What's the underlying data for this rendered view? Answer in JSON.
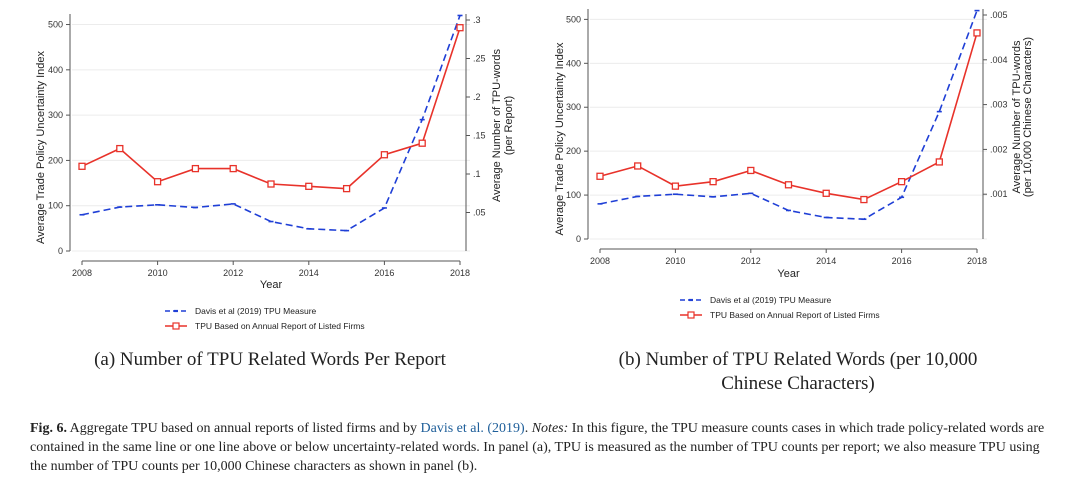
{
  "panels": [
    {
      "caption": "(a) Number of TPU Related Words Per Report",
      "chart_data": {
        "type": "line",
        "x": [
          2008,
          2009,
          2010,
          2011,
          2012,
          2013,
          2014,
          2015,
          2016,
          2017,
          2018
        ],
        "xlabel": "Year",
        "xticks": [
          "2008",
          "2010",
          "2012",
          "2014",
          "2016",
          "2018"
        ],
        "ylabel_left": "Average Trade Policy Uncertainty Index",
        "yticks_left": [
          "0",
          "100",
          "200",
          "300",
          "400",
          "500"
        ],
        "ylim_left": [
          0,
          510
        ],
        "ylabel_right": [
          "Average Number of TPU-words",
          "(per Report)"
        ],
        "yticks_right": [
          ".05",
          ".1",
          ".15",
          ".2",
          ".25",
          ".3"
        ],
        "ylim_right": [
          0.0,
          0.3
        ],
        "series": [
          {
            "name": "Davis et al (2019) TPU Measure",
            "axis": "left",
            "style": "dashed",
            "color": "#1f3fd6",
            "values": [
              80,
              97,
              102,
              96,
              104,
              65,
              49,
              45,
              95,
              290,
              520
            ]
          },
          {
            "name": "TPU Based on Annual Report of Listed Firms",
            "axis": "right",
            "style": "solid",
            "color": "#e8322a",
            "values": [
              0.11,
              0.133,
              0.09,
              0.107,
              0.107,
              0.087,
              0.084,
              0.081,
              0.125,
              0.14,
              0.29
            ]
          }
        ],
        "legend_position": "bottom"
      }
    },
    {
      "caption": "(b) Number of TPU Related Words (per 10,000 Chinese Characters)",
      "chart_data": {
        "type": "line",
        "x": [
          2008,
          2009,
          2010,
          2011,
          2012,
          2013,
          2014,
          2015,
          2016,
          2017,
          2018
        ],
        "xlabel": "Year",
        "xticks": [
          "2008",
          "2010",
          "2012",
          "2014",
          "2016",
          "2018"
        ],
        "ylabel_left": "Average Trade Policy Uncertainty Index",
        "yticks_left": [
          "0",
          "100",
          "200",
          "300",
          "400",
          "500"
        ],
        "ylim_left": [
          0,
          510
        ],
        "ylabel_right": [
          "Average Number of TPU-words",
          "(per 10,000 Chinese Characters)"
        ],
        "yticks_right": [
          ".001",
          ".002",
          ".003",
          ".004",
          ".005"
        ],
        "ylim_right": [
          0.0,
          0.005
        ],
        "series": [
          {
            "name": "Davis et al (2019) TPU Measure",
            "axis": "left",
            "style": "dashed",
            "color": "#1f3fd6",
            "values": [
              80,
              97,
              102,
              96,
              104,
              65,
              49,
              45,
              95,
              290,
              520
            ]
          },
          {
            "name": "TPU Based on Annual Report of Listed Firms",
            "axis": "right",
            "style": "solid",
            "color": "#e8322a",
            "values": [
              0.0014,
              0.00163,
              0.00118,
              0.00128,
              0.00153,
              0.00121,
              0.00102,
              0.00088,
              0.00128,
              0.00172,
              0.0046
            ]
          }
        ],
        "legend_position": "bottom"
      }
    }
  ],
  "figure_caption": {
    "label": "Fig. 6.",
    "text_1": " Aggregate TPU based on annual reports of listed firms and by ",
    "citation": "Davis et al. (2019)",
    "text_2": ". ",
    "notes_label": "Notes:",
    "text_3": " In this figure, the TPU measure counts cases in which trade policy-related words are contained in the same line or one line above or below uncertainty-related words. In panel (a), TPU is measured as the number of TPU counts per report; we also measure TPU using the number of TPU counts per 10,000 Chinese characters as shown in panel (b)."
  }
}
